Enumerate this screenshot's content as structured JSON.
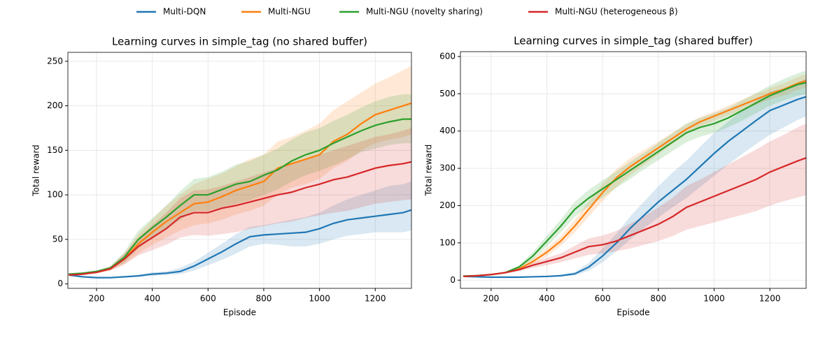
{
  "chart_data": [
    {
      "type": "line",
      "title": "Learning curves in simple_tag (no shared buffer)",
      "xlabel": "Episode",
      "ylabel": "Total reward",
      "x": [
        100,
        150,
        200,
        250,
        300,
        350,
        400,
        450,
        500,
        550,
        600,
        650,
        700,
        750,
        800,
        850,
        900,
        950,
        1000,
        1050,
        1100,
        1150,
        1200,
        1250,
        1300,
        1330
      ],
      "xlim": [
        97,
        1330
      ],
      "ylim": [
        -5,
        260
      ],
      "xticks": [
        200,
        400,
        600,
        800,
        1000,
        1200
      ],
      "yticks": [
        0,
        50,
        100,
        150,
        200,
        250
      ],
      "grid": true,
      "series": [
        {
          "name": "Multi-DQN",
          "color": "#1f77b4",
          "values": [
            10,
            8,
            7,
            7,
            8,
            9,
            11,
            12,
            14,
            20,
            28,
            36,
            45,
            53,
            55,
            56,
            57,
            58,
            62,
            68,
            72,
            74,
            76,
            78,
            80,
            83
          ],
          "lower": [
            9,
            7,
            6,
            6,
            7,
            8,
            9,
            10,
            11,
            15,
            21,
            27,
            34,
            42,
            45,
            44,
            42,
            42,
            45,
            50,
            54,
            56,
            58,
            58,
            58,
            60
          ],
          "upper": [
            11,
            9,
            8,
            8,
            9,
            10,
            13,
            14,
            18,
            25,
            35,
            45,
            56,
            64,
            66,
            69,
            72,
            75,
            80,
            88,
            95,
            100,
            105,
            110,
            112,
            115
          ]
        },
        {
          "name": "Multi-NGU",
          "color": "#ff7f0e",
          "values": [
            10,
            11,
            13,
            17,
            28,
            45,
            58,
            70,
            80,
            90,
            92,
            98,
            105,
            110,
            115,
            130,
            135,
            140,
            145,
            160,
            168,
            180,
            190,
            195,
            200,
            203
          ],
          "lower": [
            9,
            10,
            12,
            15,
            22,
            34,
            44,
            52,
            60,
            66,
            68,
            72,
            78,
            82,
            88,
            100,
            108,
            112,
            118,
            130,
            138,
            150,
            158,
            162,
            165,
            168
          ],
          "upper": [
            11,
            12,
            14,
            20,
            34,
            56,
            72,
            88,
            100,
            112,
            118,
            124,
            132,
            140,
            145,
            160,
            165,
            172,
            180,
            195,
            205,
            215,
            225,
            232,
            240,
            245
          ]
        },
        {
          "name": "Multi-NGU (novelty sharing)",
          "color": "#2ca02c",
          "values": [
            11,
            12,
            14,
            18,
            30,
            50,
            63,
            75,
            88,
            100,
            100,
            106,
            112,
            115,
            122,
            128,
            138,
            145,
            150,
            158,
            165,
            172,
            178,
            182,
            185,
            185
          ],
          "lower": [
            10,
            11,
            13,
            16,
            24,
            40,
            52,
            62,
            72,
            82,
            82,
            86,
            90,
            94,
            100,
            106,
            115,
            122,
            127,
            133,
            140,
            148,
            152,
            156,
            158,
            158
          ],
          "upper": [
            12,
            13,
            15,
            20,
            36,
            60,
            74,
            88,
            104,
            118,
            120,
            126,
            134,
            138,
            145,
            152,
            162,
            170,
            175,
            183,
            190,
            198,
            205,
            210,
            213,
            213
          ]
        },
        {
          "name": "Multi-NGU (heterogeneous β)",
          "color": "#d62728",
          "values": [
            10,
            11,
            13,
            17,
            28,
            42,
            52,
            62,
            75,
            80,
            80,
            85,
            88,
            92,
            96,
            100,
            103,
            108,
            112,
            117,
            120,
            125,
            130,
            133,
            135,
            137
          ],
          "lower": [
            9,
            10,
            12,
            15,
            22,
            32,
            38,
            44,
            52,
            55,
            54,
            56,
            58,
            62,
            65,
            68,
            70,
            74,
            77,
            80,
            82,
            86,
            90,
            92,
            94,
            95
          ],
          "upper": [
            11,
            12,
            14,
            19,
            34,
            52,
            66,
            80,
            96,
            105,
            106,
            110,
            115,
            120,
            125,
            130,
            135,
            140,
            145,
            150,
            155,
            160,
            165,
            168,
            172,
            175
          ]
        }
      ]
    },
    {
      "type": "line",
      "title": "Learning curves in simple_tag (shared buffer)",
      "xlabel": "Episode",
      "ylabel": "Total reward",
      "x": [
        100,
        150,
        200,
        250,
        300,
        350,
        400,
        450,
        500,
        550,
        600,
        650,
        700,
        750,
        800,
        850,
        900,
        950,
        1000,
        1050,
        1100,
        1150,
        1200,
        1250,
        1300,
        1330
      ],
      "xlim": [
        90,
        1330
      ],
      "ylim": [
        -22,
        613
      ],
      "xticks": [
        200,
        400,
        600,
        800,
        1000,
        1200
      ],
      "yticks": [
        0,
        100,
        200,
        300,
        400,
        500,
        600
      ],
      "grid": true,
      "series": [
        {
          "color": "#1f77b4",
          "values": [
            10,
            9,
            8,
            8,
            8,
            9,
            10,
            12,
            17,
            35,
            65,
            100,
            140,
            175,
            210,
            240,
            270,
            305,
            340,
            372,
            400,
            428,
            455,
            470,
            485,
            492
          ],
          "lower": [
            9,
            8,
            7,
            7,
            7,
            8,
            9,
            10,
            13,
            25,
            48,
            78,
            110,
            140,
            168,
            195,
            220,
            250,
            280,
            310,
            338,
            365,
            390,
            410,
            430,
            440
          ],
          "upper": [
            11,
            10,
            9,
            9,
            9,
            10,
            11,
            14,
            22,
            46,
            85,
            125,
            172,
            212,
            252,
            288,
            320,
            358,
            395,
            425,
            455,
            480,
            505,
            515,
            530,
            540
          ]
        },
        {
          "color": "#ff7f0e",
          "values": [
            10,
            12,
            15,
            20,
            30,
            50,
            75,
            105,
            145,
            190,
            235,
            275,
            305,
            330,
            355,
            380,
            405,
            425,
            440,
            455,
            470,
            485,
            500,
            512,
            528,
            535
          ],
          "lower": [
            9,
            11,
            14,
            18,
            26,
            42,
            64,
            92,
            128,
            170,
            212,
            250,
            282,
            310,
            338,
            365,
            392,
            412,
            428,
            442,
            456,
            470,
            485,
            496,
            510,
            516
          ],
          "upper": [
            11,
            13,
            16,
            22,
            34,
            58,
            86,
            118,
            162,
            210,
            258,
            298,
            328,
            350,
            372,
            395,
            418,
            438,
            452,
            468,
            484,
            500,
            515,
            528,
            545,
            552
          ]
        },
        {
          "color": "#2ca02c",
          "values": [
            11,
            12,
            15,
            20,
            35,
            65,
            105,
            145,
            190,
            220,
            245,
            270,
            295,
            320,
            345,
            370,
            395,
            410,
            420,
            435,
            455,
            475,
            495,
            510,
            525,
            530
          ],
          "lower": [
            10,
            11,
            14,
            18,
            30,
            55,
            90,
            128,
            170,
            198,
            222,
            248,
            272,
            298,
            322,
            346,
            370,
            385,
            395,
            410,
            428,
            448,
            468,
            482,
            495,
            500
          ],
          "upper": [
            12,
            13,
            16,
            22,
            40,
            75,
            120,
            162,
            210,
            242,
            268,
            292,
            318,
            342,
            368,
            394,
            420,
            435,
            448,
            462,
            482,
            502,
            522,
            540,
            555,
            562
          ]
        },
        {
          "color": "#d62728",
          "values": [
            10,
            12,
            15,
            20,
            28,
            40,
            50,
            60,
            75,
            90,
            95,
            105,
            120,
            135,
            150,
            170,
            195,
            210,
            225,
            240,
            255,
            270,
            290,
            305,
            320,
            328
          ],
          "lower": [
            9,
            11,
            14,
            18,
            24,
            33,
            40,
            48,
            58,
            68,
            72,
            78,
            85,
            95,
            105,
            118,
            135,
            145,
            155,
            165,
            175,
            185,
            200,
            212,
            222,
            228
          ],
          "upper": [
            11,
            13,
            16,
            22,
            32,
            47,
            60,
            72,
            92,
            112,
            120,
            132,
            152,
            172,
            195,
            220,
            252,
            270,
            290,
            310,
            330,
            350,
            372,
            390,
            410,
            420
          ]
        }
      ]
    }
  ]
}
